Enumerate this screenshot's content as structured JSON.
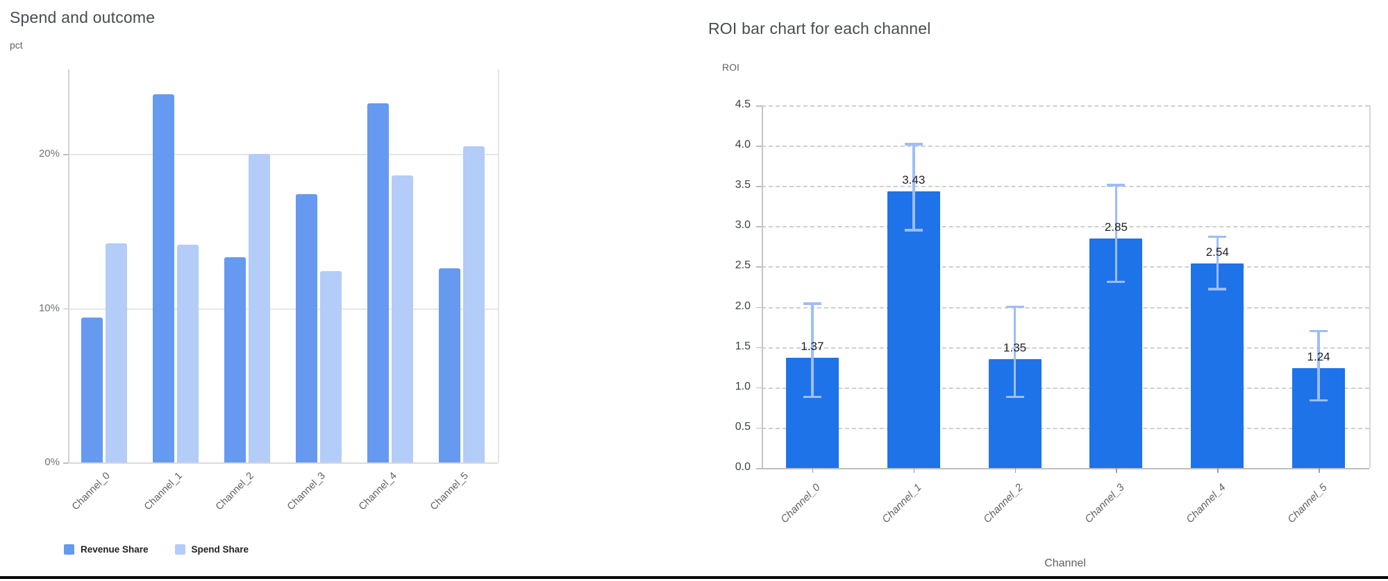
{
  "page": {
    "background": "#ffffff",
    "bottom_rule_color": "#050505"
  },
  "chart_data": [
    {
      "type": "bar",
      "title": "Spend and outcome",
      "ylabel": "pct",
      "xlabel": "",
      "categories": [
        "Channel_0",
        "Channel_1",
        "Channel_2",
        "Channel_3",
        "Channel_4",
        "Channel_5"
      ],
      "series": [
        {
          "name": "Revenue Share",
          "color": "#6699F0",
          "values": [
            9.4,
            23.9,
            13.3,
            17.4,
            23.3,
            12.6
          ]
        },
        {
          "name": "Spend Share",
          "color": "#B3CCF8",
          "values": [
            14.2,
            14.1,
            20.0,
            12.4,
            18.6,
            20.5
          ]
        }
      ],
      "ytick_values": [
        0,
        10,
        20
      ],
      "ytick_labels": [
        "0%",
        "10%",
        "20%"
      ],
      "ylim": [
        0,
        25.5
      ],
      "grid": "solid",
      "legend_position": "bottom"
    },
    {
      "type": "bar",
      "title": "ROI bar chart for each channel",
      "ylabel": "ROI",
      "xlabel": "Channel",
      "categories": [
        "Channel_0",
        "Channel_1",
        "Channel_2",
        "Channel_3",
        "Channel_4",
        "Channel_5"
      ],
      "values": [
        1.37,
        3.43,
        1.35,
        2.85,
        2.54,
        1.24
      ],
      "value_labels": [
        "1.37",
        "3.43",
        "1.35",
        "2.85",
        "2.54",
        "1.24"
      ],
      "error_low": [
        0.88,
        2.95,
        0.88,
        2.31,
        2.22,
        0.84
      ],
      "error_high": [
        2.04,
        4.02,
        2.0,
        3.51,
        2.87,
        1.7
      ],
      "bar_color": "#1E73E8",
      "error_color": "#9DBDF9",
      "ytick_values": [
        0.0,
        0.5,
        1.0,
        1.5,
        2.0,
        2.5,
        3.0,
        3.5,
        4.0,
        4.5
      ],
      "ytick_labels": [
        "0.0",
        "0.5",
        "1.0",
        "1.5",
        "2.0",
        "2.5",
        "3.0",
        "3.5",
        "4.0",
        "4.5"
      ],
      "ylim": [
        0,
        4.5
      ],
      "grid": "dashed",
      "legend_position": "none"
    }
  ]
}
